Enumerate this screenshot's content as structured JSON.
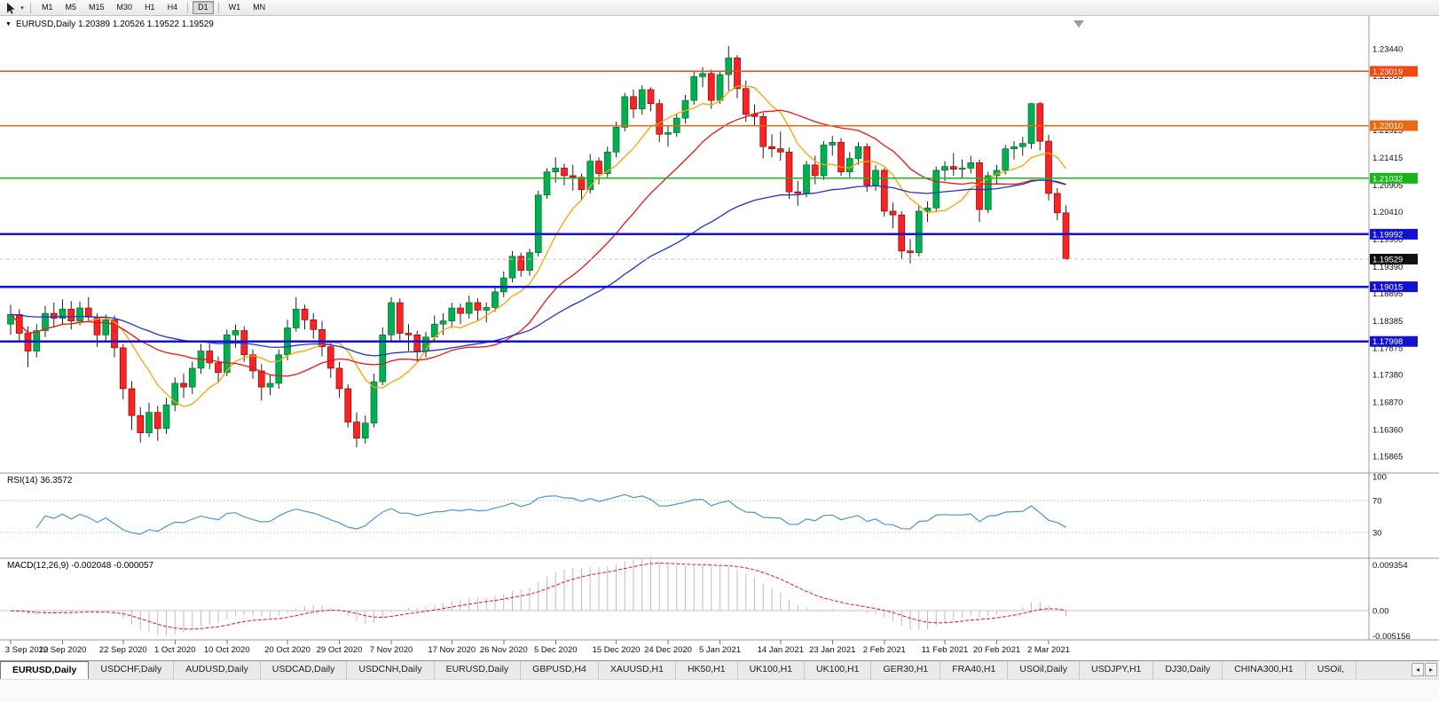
{
  "toolbar": {
    "timeframes": [
      {
        "label": "M1",
        "active": false
      },
      {
        "label": "M5",
        "active": false
      },
      {
        "label": "M15",
        "active": false
      },
      {
        "label": "M30",
        "active": false
      },
      {
        "label": "H1",
        "active": false
      },
      {
        "label": "H4",
        "active": false
      },
      {
        "label": "D1",
        "active": true
      },
      {
        "label": "W1",
        "active": false
      },
      {
        "label": "MN",
        "active": false
      }
    ]
  },
  "chart_info": {
    "collapse_marker": "▼",
    "title": "EURUSD,Daily 1.20389 1.20526 1.19522 1.19529"
  },
  "indicators": {
    "rsi_label": "RSI(14) 36.3572",
    "macd_label": "MACD(12,26,9) -0.002048 -0.000057"
  },
  "chart_data": {
    "type": "candlestick",
    "symbol": "EURUSD",
    "timeframe": "Daily",
    "ohlc_display": {
      "open": "1.20389",
      "high": "1.20526",
      "low": "1.19522",
      "close": "1.19529"
    },
    "price_range": {
      "top": 1.2395,
      "bottom": 1.1575
    },
    "candle_up_color": "#00b050",
    "candle_down_color": "#f52525",
    "candle_up_stroke": "#00702f",
    "candle_down_stroke": "#9e0000",
    "y_ticks": [
      1.2344,
      1.22935,
      1.21925,
      1.21415,
      1.20905,
      1.2041,
      1.199,
      1.1939,
      1.18895,
      1.18385,
      1.17875,
      1.1738,
      1.1687,
      1.1636,
      1.15865
    ],
    "hlines": [
      {
        "value": 1.23019,
        "color": "#f1490e",
        "width": 1.6
      },
      {
        "value": 1.2201,
        "color": "#ea6a12",
        "width": 1.6
      },
      {
        "value": 1.21032,
        "color": "#18b418",
        "width": 1.6
      },
      {
        "value": 1.19992,
        "color": "#1212d0",
        "width": 2.4
      },
      {
        "value": 1.19015,
        "color": "#1212d0",
        "width": 2.4
      },
      {
        "value": 1.17998,
        "color": "#1212d0",
        "width": 2.4
      }
    ],
    "current_price": 1.19529,
    "current_price_badge_color": "#101010",
    "moving_averages": [
      {
        "name": "fast",
        "period": 8,
        "type": "sma",
        "color": "#ffa200"
      },
      {
        "name": "mid",
        "period": 21,
        "type": "sma",
        "color": "#ee1515"
      },
      {
        "name": "slow",
        "period": 55,
        "type": "ema",
        "color": "#2233cc"
      }
    ],
    "rsi": {
      "period": 14,
      "last": 36.3572,
      "levels": [
        100,
        70,
        30
      ],
      "color": "#4f94cd"
    },
    "macd": {
      "fast": 12,
      "slow": 26,
      "signal": 9,
      "last_macd": -0.002048,
      "last_signal": -5.7e-05,
      "scale_max": 0.009354,
      "scale_min": -0.005156,
      "scale_labels": [
        "0.009354",
        "0.00",
        "-0.005156"
      ],
      "histogram_color": "#bdbdbd",
      "signal_color": "#ee1515"
    },
    "x_labels": [
      "3 Sep 2020",
      "12 Sep 2020",
      "22 Sep 2020",
      "1 Oct 2020",
      "10 Oct 2020",
      "20 Oct 2020",
      "29 Oct 2020",
      "7 Nov 2020",
      "17 Nov 2020",
      "26 Nov 2020",
      "5 Dec 2020",
      "15 Dec 2020",
      "24 Dec 2020",
      "5 Jan 2021",
      "14 Jan 2021",
      "23 Jan 2021",
      "2 Feb 2021",
      "11 Feb 2021",
      "20 Feb 2021",
      "2 Mar 2021"
    ],
    "x_label_indices": [
      0,
      6,
      13,
      19,
      25,
      32,
      38,
      44,
      51,
      57,
      63,
      70,
      76,
      82,
      89,
      95,
      101,
      108,
      114,
      120
    ],
    "candles": [
      [
        1.1832,
        1.1868,
        1.1812,
        1.185
      ],
      [
        1.185,
        1.186,
        1.1798,
        1.1815
      ],
      [
        1.1815,
        1.1828,
        1.1752,
        1.1782
      ],
      [
        1.1782,
        1.1832,
        1.177,
        1.182
      ],
      [
        1.182,
        1.1866,
        1.1808,
        1.1852
      ],
      [
        1.1852,
        1.1872,
        1.1826,
        1.1843
      ],
      [
        1.1843,
        1.1878,
        1.1832,
        1.186
      ],
      [
        1.186,
        1.1875,
        1.1822,
        1.1838
      ],
      [
        1.1838,
        1.1874,
        1.183,
        1.1862
      ],
      [
        1.1862,
        1.1882,
        1.1838,
        1.1845
      ],
      [
        1.1845,
        1.1852,
        1.179,
        1.1812
      ],
      [
        1.1812,
        1.185,
        1.18,
        1.184
      ],
      [
        1.184,
        1.1848,
        1.177,
        1.1788
      ],
      [
        1.1788,
        1.1795,
        1.1692,
        1.1712
      ],
      [
        1.1712,
        1.1726,
        1.1635,
        1.1662
      ],
      [
        1.1662,
        1.1678,
        1.1612,
        1.163
      ],
      [
        1.163,
        1.1686,
        1.1622,
        1.1668
      ],
      [
        1.1668,
        1.168,
        1.1615,
        1.1638
      ],
      [
        1.1638,
        1.1695,
        1.1628,
        1.1682
      ],
      [
        1.1682,
        1.1733,
        1.167,
        1.1722
      ],
      [
        1.1722,
        1.174,
        1.1695,
        1.1715
      ],
      [
        1.1715,
        1.1762,
        1.1702,
        1.175
      ],
      [
        1.175,
        1.1795,
        1.174,
        1.1782
      ],
      [
        1.1782,
        1.1796,
        1.1748,
        1.176
      ],
      [
        1.176,
        1.1772,
        1.1725,
        1.1742
      ],
      [
        1.1742,
        1.1822,
        1.1735,
        1.1812
      ],
      [
        1.1812,
        1.1831,
        1.1788,
        1.182
      ],
      [
        1.182,
        1.1828,
        1.1762,
        1.1775
      ],
      [
        1.1775,
        1.1785,
        1.173,
        1.1745
      ],
      [
        1.1745,
        1.1758,
        1.169,
        1.1715
      ],
      [
        1.1715,
        1.1738,
        1.17,
        1.1722
      ],
      [
        1.1722,
        1.1785,
        1.1712,
        1.1775
      ],
      [
        1.1775,
        1.184,
        1.1765,
        1.1825
      ],
      [
        1.1825,
        1.1882,
        1.1818,
        1.186
      ],
      [
        1.186,
        1.1868,
        1.1822,
        1.184
      ],
      [
        1.184,
        1.1852,
        1.1805,
        1.1822
      ],
      [
        1.1822,
        1.1838,
        1.1772,
        1.179
      ],
      [
        1.179,
        1.1802,
        1.1732,
        1.175
      ],
      [
        1.175,
        1.1762,
        1.1695,
        1.1712
      ],
      [
        1.1712,
        1.172,
        1.164,
        1.165
      ],
      [
        1.165,
        1.1668,
        1.1603,
        1.162
      ],
      [
        1.162,
        1.1662,
        1.161,
        1.1648
      ],
      [
        1.1648,
        1.174,
        1.164,
        1.1725
      ],
      [
        1.1725,
        1.1826,
        1.1718,
        1.1812
      ],
      [
        1.1812,
        1.1882,
        1.18,
        1.1872
      ],
      [
        1.1872,
        1.188,
        1.1802,
        1.1815
      ],
      [
        1.1815,
        1.1832,
        1.1782,
        1.1812
      ],
      [
        1.1812,
        1.182,
        1.1762,
        1.1782
      ],
      [
        1.1782,
        1.1818,
        1.177,
        1.1808
      ],
      [
        1.1808,
        1.1848,
        1.1798,
        1.1832
      ],
      [
        1.1832,
        1.1852,
        1.1812,
        1.1838
      ],
      [
        1.1838,
        1.1872,
        1.1825,
        1.1862
      ],
      [
        1.1862,
        1.187,
        1.1832,
        1.1852
      ],
      [
        1.1852,
        1.1885,
        1.1842,
        1.1872
      ],
      [
        1.1872,
        1.188,
        1.1838,
        1.1858
      ],
      [
        1.1858,
        1.1872,
        1.1835,
        1.1863
      ],
      [
        1.1863,
        1.1902,
        1.1855,
        1.1892
      ],
      [
        1.1892,
        1.193,
        1.1882,
        1.1918
      ],
      [
        1.1918,
        1.1968,
        1.191,
        1.1958
      ],
      [
        1.1958,
        1.1965,
        1.192,
        1.1932
      ],
      [
        1.1932,
        1.1972,
        1.1922,
        1.1965
      ],
      [
        1.1965,
        1.208,
        1.1958,
        1.2072
      ],
      [
        1.2072,
        1.2122,
        1.2065,
        1.2115
      ],
      [
        1.2115,
        1.2142,
        1.2095,
        1.2122
      ],
      [
        1.2122,
        1.213,
        1.209,
        1.2108
      ],
      [
        1.2108,
        1.2128,
        1.208,
        1.2105
      ],
      [
        1.2105,
        1.2112,
        1.2062,
        1.2082
      ],
      [
        1.2082,
        1.2148,
        1.2075,
        1.2135
      ],
      [
        1.2135,
        1.2142,
        1.2092,
        1.2112
      ],
      [
        1.2112,
        1.2162,
        1.2105,
        1.2152
      ],
      [
        1.2152,
        1.2208,
        1.2142,
        1.2198
      ],
      [
        1.2198,
        1.2262,
        1.219,
        1.2255
      ],
      [
        1.2255,
        1.2268,
        1.2215,
        1.2232
      ],
      [
        1.2232,
        1.2276,
        1.2222,
        1.2268
      ],
      [
        1.2268,
        1.2272,
        1.2228,
        1.2242
      ],
      [
        1.2242,
        1.225,
        1.217,
        1.2185
      ],
      [
        1.2185,
        1.2202,
        1.2162,
        1.2188
      ],
      [
        1.2188,
        1.2222,
        1.218,
        1.2215
      ],
      [
        1.2215,
        1.2258,
        1.2205,
        1.2248
      ],
      [
        1.2248,
        1.2302,
        1.224,
        1.2292
      ],
      [
        1.2292,
        1.231,
        1.2272,
        1.2298
      ],
      [
        1.2298,
        1.2305,
        1.2232,
        1.2248
      ],
      [
        1.2248,
        1.2302,
        1.2242,
        1.2296
      ],
      [
        1.2296,
        1.2349,
        1.2266,
        1.2327
      ],
      [
        1.2327,
        1.2332,
        1.2252,
        1.227
      ],
      [
        1.227,
        1.2285,
        1.2208,
        1.2222
      ],
      [
        1.2222,
        1.224,
        1.2202,
        1.2218
      ],
      [
        1.2218,
        1.2225,
        1.214,
        1.2162
      ],
      [
        1.2162,
        1.2185,
        1.2142,
        1.2158
      ],
      [
        1.2158,
        1.219,
        1.2136,
        1.2152
      ],
      [
        1.2152,
        1.216,
        1.2065,
        1.2078
      ],
      [
        1.2078,
        1.2098,
        1.2052,
        1.2075
      ],
      [
        1.2075,
        1.2135,
        1.2068,
        1.2128
      ],
      [
        1.2128,
        1.2145,
        1.2092,
        1.2108
      ],
      [
        1.2108,
        1.2172,
        1.21,
        1.2165
      ],
      [
        1.2165,
        1.2182,
        1.2145,
        1.217
      ],
      [
        1.217,
        1.2178,
        1.2108,
        1.2115
      ],
      [
        1.2115,
        1.2152,
        1.2105,
        1.214
      ],
      [
        1.214,
        1.217,
        1.2128,
        1.2162
      ],
      [
        1.2162,
        1.2168,
        1.2078,
        1.209
      ],
      [
        1.209,
        1.2128,
        1.208,
        1.2118
      ],
      [
        1.2118,
        1.2122,
        1.2032,
        1.2042
      ],
      [
        1.2042,
        1.2058,
        1.201,
        1.2035
      ],
      [
        1.2035,
        1.2042,
        1.1952,
        1.1968
      ],
      [
        1.1968,
        1.199,
        1.1945,
        1.1965
      ],
      [
        1.1965,
        1.2052,
        1.1958,
        1.2042
      ],
      [
        1.2042,
        1.206,
        1.2022,
        1.2048
      ],
      [
        1.2048,
        1.2125,
        1.204,
        1.2118
      ],
      [
        1.2118,
        1.2135,
        1.2098,
        1.2125
      ],
      [
        1.2125,
        1.215,
        1.2108,
        1.212
      ],
      [
        1.212,
        1.2138,
        1.2102,
        1.2122
      ],
      [
        1.2122,
        1.2145,
        1.2112,
        1.2132
      ],
      [
        1.2132,
        1.2138,
        1.2022,
        1.2045
      ],
      [
        1.2045,
        1.2115,
        1.2038,
        1.2108
      ],
      [
        1.2108,
        1.2128,
        1.2092,
        1.2118
      ],
      [
        1.2118,
        1.2165,
        1.211,
        1.2158
      ],
      [
        1.2158,
        1.2172,
        1.2138,
        1.2162
      ],
      [
        1.2162,
        1.218,
        1.2145,
        1.2168
      ],
      [
        1.2168,
        1.2243,
        1.2158,
        1.2242
      ],
      [
        1.2242,
        1.2245,
        1.2155,
        1.2172
      ],
      [
        1.2172,
        1.2184,
        1.2062,
        1.2075
      ],
      [
        1.2075,
        1.2085,
        1.2025,
        1.2039
      ],
      [
        1.20389,
        1.20526,
        1.19522,
        1.19529
      ]
    ]
  },
  "tabs": [
    {
      "label": "EURUSD,Daily",
      "active": true
    },
    {
      "label": "USDCHF,Daily",
      "active": false
    },
    {
      "label": "AUDUSD,Daily",
      "active": false
    },
    {
      "label": "USDCAD,Daily",
      "active": false
    },
    {
      "label": "USDCNH,Daily",
      "active": false
    },
    {
      "label": "EURUSD,Daily",
      "active": false
    },
    {
      "label": "GBPUSD,H4",
      "active": false
    },
    {
      "label": "XAUUSD,H1",
      "active": false
    },
    {
      "label": "HK50,H1",
      "active": false
    },
    {
      "label": "UK100,H1",
      "active": false
    },
    {
      "label": "UK100,H1",
      "active": false
    },
    {
      "label": "GER30,H1",
      "active": false
    },
    {
      "label": "FRA40,H1",
      "active": false
    },
    {
      "label": "USOil,Daily",
      "active": false
    },
    {
      "label": "USDJPY,H1",
      "active": false
    },
    {
      "label": "DJ30,Daily",
      "active": false
    },
    {
      "label": "CHINA300,H1",
      "active": false
    },
    {
      "label": "USOil,",
      "active": false
    }
  ],
  "tab_scroll": {
    "left": "◂",
    "right": "▸"
  }
}
